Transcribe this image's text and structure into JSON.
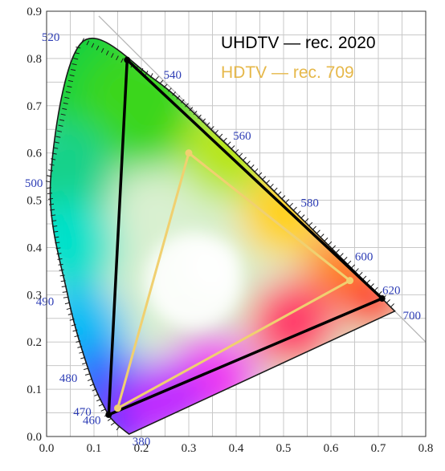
{
  "chart_data": {
    "type": "scatter",
    "xlim": [
      0,
      0.8
    ],
    "ylim": [
      0,
      0.9
    ],
    "x_ticks": [
      "0.0",
      "0.1",
      "0.2",
      "0.3",
      "0.4",
      "0.5",
      "0.6",
      "0.7",
      "0.8"
    ],
    "y_ticks": [
      "0.0",
      "0.1",
      "0.2",
      "0.3",
      "0.4",
      "0.5",
      "0.6",
      "0.7",
      "0.8",
      "0.9"
    ],
    "grid": true,
    "legend_position": "top-right",
    "spectral_locus": [
      {
        "wavelength": "380",
        "x": 0.1741,
        "y": 0.005
      },
      {
        "wavelength": "460",
        "x": 0.144,
        "y": 0.0297
      },
      {
        "wavelength": "470",
        "x": 0.1241,
        "y": 0.0578
      },
      {
        "wavelength": "480",
        "x": 0.0913,
        "y": 0.1327
      },
      {
        "wavelength": "490",
        "x": 0.0454,
        "y": 0.295
      },
      {
        "wavelength": "500",
        "x": 0.0082,
        "y": 0.5384
      },
      {
        "wavelength": "520",
        "x": 0.0743,
        "y": 0.8338
      },
      {
        "wavelength": "540",
        "x": 0.2296,
        "y": 0.7543
      },
      {
        "wavelength": "560",
        "x": 0.3731,
        "y": 0.6245
      },
      {
        "wavelength": "580",
        "x": 0.5125,
        "y": 0.4866
      },
      {
        "wavelength": "600",
        "x": 0.627,
        "y": 0.3725
      },
      {
        "wavelength": "620",
        "x": 0.6915,
        "y": 0.3083
      },
      {
        "wavelength": "700",
        "x": 0.7347,
        "y": 0.2653
      }
    ],
    "series": [
      {
        "name": "UHDTV — rec. 2020",
        "color": "#000000",
        "points": [
          {
            "x": 0.708,
            "y": 0.292
          },
          {
            "x": 0.17,
            "y": 0.797
          },
          {
            "x": 0.131,
            "y": 0.046
          }
        ]
      },
      {
        "name": "HDTV — rec. 709",
        "color": "#f0d070",
        "points": [
          {
            "x": 0.64,
            "y": 0.33
          },
          {
            "x": 0.3,
            "y": 0.6
          },
          {
            "x": 0.15,
            "y": 0.06
          }
        ]
      }
    ]
  },
  "legend": {
    "rec2020": "UHDTV — rec. 2020",
    "rec709": "HDTV — rec. 709"
  },
  "colors": {
    "rec2020": "#000000",
    "rec709": "#f0d070",
    "rec709_text": "#e6b84a",
    "wavelength_labels": "#2c3cb5",
    "grid": "#c8c8c8"
  }
}
